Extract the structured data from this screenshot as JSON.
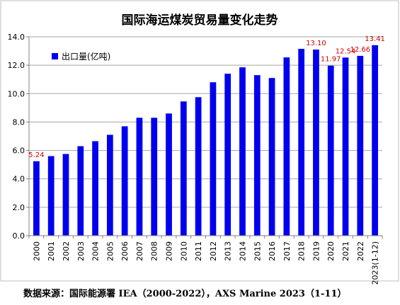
{
  "chart_data": {
    "type": "bar",
    "title": "国际海运煤炭贸易量变化走势",
    "xlabel": "",
    "ylabel": "",
    "ylim": [
      0,
      14
    ],
    "yticks": [
      "0.0",
      "2.0",
      "4.0",
      "6.0",
      "8.0",
      "10.0",
      "12.0",
      "14.0"
    ],
    "grid": true,
    "legend_position": "top-left",
    "categories": [
      "2000",
      "2001",
      "2002",
      "2003",
      "2004",
      "2005",
      "2006",
      "2007",
      "2008",
      "2009",
      "2010",
      "2011",
      "2012",
      "2013",
      "2014",
      "2015",
      "2016",
      "2017",
      "2018",
      "2019",
      "2020",
      "2021",
      "2022",
      "2023(1-12)"
    ],
    "series": [
      {
        "name": "出口量(亿吨)",
        "color": "#0000ee",
        "values": [
          5.24,
          5.6,
          5.75,
          6.3,
          6.65,
          7.1,
          7.7,
          8.3,
          8.3,
          8.6,
          9.45,
          9.75,
          10.8,
          11.4,
          11.85,
          11.3,
          11.1,
          12.55,
          13.15,
          13.1,
          11.97,
          12.54,
          12.66,
          13.41
        ],
        "data_labels": [
          "5.24",
          "",
          "",
          "",
          "",
          "",
          "",
          "",
          "",
          "",
          "",
          "",
          "",
          "",
          "",
          "",
          "",
          "",
          "",
          "13.10",
          "11.97",
          "12.54",
          "12.66",
          "13.41"
        ]
      }
    ],
    "label_color": "#cc0000"
  },
  "source_note": "数据来源：国际能源署 IEA（2000-2022），AXS Marine 2023（1-11）"
}
